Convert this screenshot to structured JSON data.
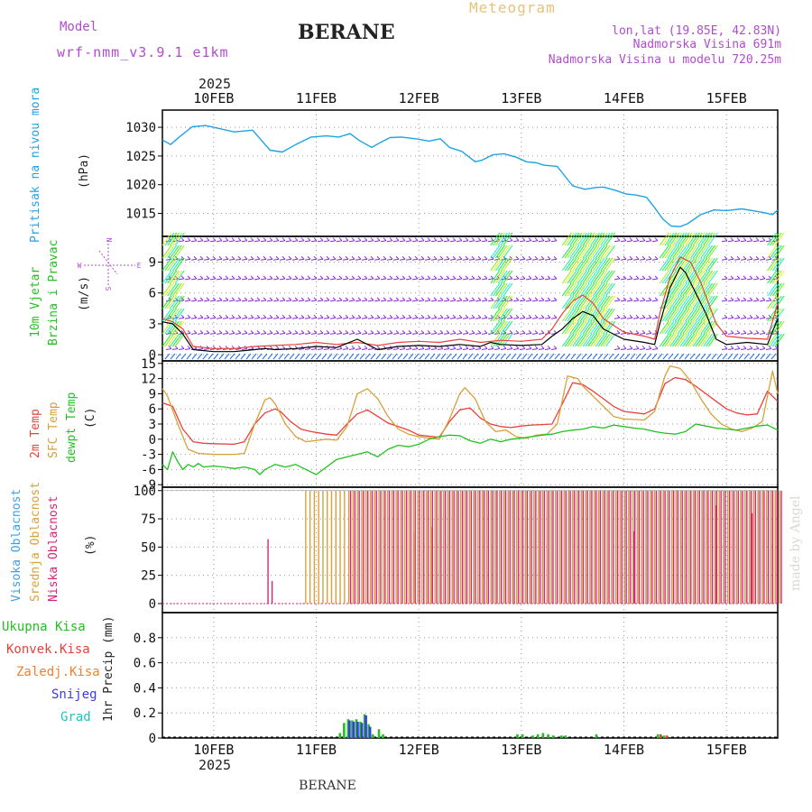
{
  "header": {
    "model_label": "Model",
    "model_name": "wrf-nmm_v3.9.1  e1km",
    "station": "BERANE",
    "product": "Meteogram",
    "location": "lon,lat (19.85E, 42.83N)",
    "elevation": "Nadmorska Visina 691m",
    "model_elevation": "Nadmorska Visina u modelu 720.25m",
    "year_top": "2025",
    "year_bottom": "2025",
    "footer_station": "BERANE",
    "credit": "made by Angel"
  },
  "colors": {
    "pressure": "#1fa2e6",
    "temp2m": "#e8413a",
    "sfc_temp": "#d9a03a",
    "dewpoint": "#22c022",
    "high_cloud": "#3aa0e6",
    "mid_cloud": "#d9a03a",
    "low_cloud": "#d8247a",
    "total_precip": "#22c022",
    "conv_precip": "#e8413a",
    "frozen_precip": "#f08030",
    "snow": "#3a3ae6",
    "graupel": "#22c0c0",
    "wind_purple": "#8a2be2",
    "gust": "#e8413a"
  },
  "chart_data": [
    {
      "type": "line",
      "panel": "pressure",
      "title": "",
      "ylabel_lines": [
        "Pritisak na nivou mora",
        "(hPa)"
      ],
      "x_categories": [
        "10FEB",
        "11FEB",
        "12FEB",
        "13FEB",
        "14FEB",
        "15FEB"
      ],
      "x_range_days": [
        9.5,
        15.5
      ],
      "ylim": [
        1011,
        1033
      ],
      "yticks": [
        "1015",
        "1020",
        "1025",
        "1030"
      ],
      "grid": true,
      "series": [
        {
          "name": "",
          "x": [
            9.5,
            9.58,
            9.67,
            9.79,
            9.92,
            10.0,
            10.2,
            10.38,
            10.55,
            10.67,
            10.8,
            10.95,
            11.1,
            11.22,
            11.33,
            11.42,
            11.54,
            11.62,
            11.72,
            11.83,
            11.97,
            12.1,
            12.21,
            12.3,
            12.42,
            12.55,
            12.62,
            12.72,
            12.83,
            12.95,
            13.05,
            13.15,
            13.22,
            13.35,
            13.42,
            13.5,
            13.62,
            13.72,
            13.8,
            13.92,
            14.02,
            14.12,
            14.22,
            14.3,
            14.38,
            14.46,
            14.55,
            14.62,
            14.75,
            14.88,
            15.0,
            15.15,
            15.25,
            15.35,
            15.45,
            15.5
          ],
          "y": [
            1027.8,
            1027.0,
            1028.4,
            1030.1,
            1030.3,
            1030.0,
            1029.2,
            1029.5,
            1026.0,
            1025.7,
            1027.0,
            1028.3,
            1028.5,
            1028.3,
            1028.9,
            1027.7,
            1026.5,
            1027.3,
            1028.2,
            1028.3,
            1028.0,
            1027.6,
            1028.0,
            1026.5,
            1025.8,
            1024.0,
            1024.3,
            1025.2,
            1025.4,
            1024.8,
            1024.0,
            1023.8,
            1023.4,
            1023.2,
            1021.6,
            1019.8,
            1019.2,
            1019.5,
            1019.6,
            1019.0,
            1018.4,
            1018.2,
            1017.8,
            1016.0,
            1014.0,
            1012.8,
            1012.7,
            1013.2,
            1014.8,
            1015.6,
            1015.5,
            1015.8,
            1015.5,
            1015.2,
            1014.8,
            1015.6
          ]
        }
      ]
    },
    {
      "type": "line",
      "panel": "wind",
      "ylabel_lines": [
        "10m Vjetar",
        "Brzina i Pravac",
        "(m/s)"
      ],
      "compass": {
        "n": "N",
        "s": "S",
        "e": "E",
        "w": "W"
      },
      "ylim": [
        -0.6,
        11.5
      ],
      "yticks": [
        "0",
        "3",
        "6",
        "9"
      ],
      "grid": true,
      "series": [
        {
          "name": "",
          "x": [
            9.5,
            9.6,
            9.7,
            9.8,
            10.0,
            10.2,
            10.4,
            10.5,
            10.6,
            10.8,
            11.0,
            11.2,
            11.4,
            11.6,
            11.8,
            12.0,
            12.2,
            12.4,
            12.6,
            12.7,
            12.8,
            13.0,
            13.2,
            13.3,
            13.4,
            13.5,
            13.6,
            13.7,
            13.8,
            14.0,
            14.2,
            14.3,
            14.35,
            14.45,
            14.55,
            14.6,
            14.7,
            14.8,
            14.9,
            15.0,
            15.2,
            15.4,
            15.5
          ],
          "y": [
            3.2,
            3.0,
            2.0,
            0.5,
            0.3,
            0.3,
            0.5,
            0.6,
            0.5,
            0.6,
            0.8,
            0.7,
            1.5,
            0.5,
            0.8,
            0.9,
            0.8,
            1.0,
            0.8,
            1.2,
            1.0,
            0.9,
            1.0,
            1.8,
            2.5,
            3.5,
            4.2,
            3.8,
            2.5,
            1.5,
            1.2,
            1.0,
            3.0,
            6.5,
            8.5,
            8.0,
            6.0,
            4.0,
            1.5,
            1.0,
            1.2,
            1.0,
            3.5
          ]
        },
        {
          "name": "",
          "x": [
            9.5,
            9.6,
            9.7,
            9.8,
            10.0,
            10.2,
            10.4,
            10.6,
            10.8,
            11.0,
            11.2,
            11.4,
            11.6,
            11.8,
            12.0,
            12.2,
            12.4,
            12.6,
            12.8,
            13.0,
            13.2,
            13.3,
            13.4,
            13.5,
            13.6,
            13.7,
            13.8,
            14.0,
            14.2,
            14.3,
            14.35,
            14.45,
            14.55,
            14.65,
            14.75,
            14.9,
            15.0,
            15.2,
            15.4,
            15.5
          ],
          "y": [
            3.5,
            3.2,
            2.5,
            0.8,
            0.6,
            0.6,
            0.8,
            0.9,
            1.0,
            1.2,
            1.0,
            1.2,
            0.9,
            1.2,
            1.3,
            1.2,
            1.5,
            1.2,
            1.4,
            1.3,
            1.5,
            2.5,
            4.0,
            5.2,
            5.8,
            5.0,
            3.5,
            2.2,
            1.8,
            1.5,
            4.0,
            7.5,
            9.5,
            9.0,
            7.0,
            3.0,
            1.8,
            1.6,
            1.5,
            5.0
          ]
        }
      ]
    },
    {
      "type": "line",
      "panel": "temperature",
      "ylabel_lines": [
        "2m Temp",
        "SFC Temp",
        "dewpt Temp",
        "(C)"
      ],
      "ylim": [
        -9.5,
        15.5
      ],
      "yticks": [
        "-9",
        "-6",
        "-3",
        "0",
        "3",
        "6",
        "9",
        "12",
        "15"
      ],
      "grid": true,
      "series": [
        {
          "name": "2m Temp",
          "x": [
            9.5,
            9.6,
            9.7,
            9.8,
            9.9,
            10.0,
            10.2,
            10.3,
            10.4,
            10.5,
            10.6,
            10.65,
            10.75,
            10.85,
            10.95,
            11.1,
            11.2,
            11.3,
            11.4,
            11.5,
            11.6,
            11.7,
            11.8,
            11.9,
            12.0,
            12.2,
            12.3,
            12.4,
            12.5,
            12.6,
            12.7,
            12.8,
            12.9,
            13.0,
            13.1,
            13.2,
            13.3,
            13.4,
            13.5,
            13.6,
            13.7,
            13.8,
            13.9,
            14.0,
            14.2,
            14.3,
            14.4,
            14.5,
            14.6,
            14.7,
            14.8,
            14.9,
            15.0,
            15.1,
            15.2,
            15.3,
            15.4,
            15.5
          ],
          "y": [
            7.2,
            6.5,
            2.0,
            -0.5,
            -0.8,
            -0.9,
            -1.0,
            -0.5,
            3.0,
            5.2,
            6.0,
            5.5,
            3.5,
            2.0,
            1.5,
            1.0,
            0.8,
            3.0,
            5.0,
            5.8,
            4.5,
            3.2,
            2.5,
            1.8,
            0.8,
            0.4,
            3.5,
            5.8,
            6.2,
            4.2,
            3.0,
            2.5,
            2.3,
            2.6,
            2.8,
            2.9,
            3.0,
            7.0,
            11.2,
            10.8,
            9.5,
            8.0,
            6.5,
            5.5,
            5.0,
            6.0,
            11.0,
            12.2,
            11.8,
            10.5,
            9.0,
            7.5,
            6.0,
            5.2,
            4.8,
            5.0,
            9.5,
            7.5
          ]
        },
        {
          "name": "SFC Temp",
          "x": [
            9.5,
            9.55,
            9.65,
            9.75,
            9.85,
            10.0,
            10.2,
            10.3,
            10.4,
            10.5,
            10.55,
            10.6,
            10.7,
            10.8,
            10.9,
            11.1,
            11.2,
            11.3,
            11.4,
            11.5,
            11.6,
            11.7,
            11.8,
            11.9,
            12.0,
            12.2,
            12.3,
            12.4,
            12.45,
            12.55,
            12.65,
            12.75,
            12.85,
            12.95,
            13.05,
            13.15,
            13.25,
            13.35,
            13.45,
            13.55,
            13.6,
            13.7,
            13.8,
            13.9,
            14.0,
            14.2,
            14.3,
            14.4,
            14.45,
            14.55,
            14.65,
            14.75,
            14.85,
            14.95,
            15.05,
            15.15,
            15.25,
            15.35,
            15.45,
            15.5
          ],
          "y": [
            10.0,
            8.5,
            3.0,
            -2.0,
            -2.8,
            -3.0,
            -3.0,
            -2.8,
            3.0,
            7.8,
            8.2,
            7.0,
            3.0,
            0.5,
            -0.5,
            0.0,
            -0.2,
            2.5,
            9.0,
            10.0,
            8.0,
            4.5,
            2.0,
            1.0,
            0.5,
            0.0,
            4.0,
            9.0,
            10.2,
            8.0,
            3.5,
            1.5,
            1.8,
            0.5,
            0.2,
            0.8,
            1.0,
            3.0,
            12.5,
            12.0,
            10.5,
            8.5,
            6.5,
            4.5,
            4.0,
            3.8,
            5.5,
            12.5,
            14.5,
            14.0,
            11.5,
            8.0,
            5.0,
            3.0,
            2.0,
            1.5,
            2.2,
            3.5,
            13.5,
            9.0
          ]
        },
        {
          "name": "dewpt Temp",
          "x": [
            9.5,
            9.55,
            9.6,
            9.65,
            9.7,
            9.75,
            9.8,
            9.85,
            9.9,
            10.0,
            10.1,
            10.2,
            10.3,
            10.4,
            10.45,
            10.5,
            10.55,
            10.6,
            10.7,
            10.8,
            10.9,
            11.0,
            11.1,
            11.2,
            11.3,
            11.4,
            11.5,
            11.6,
            11.7,
            11.8,
            11.9,
            12.0,
            12.1,
            12.2,
            12.3,
            12.4,
            12.5,
            12.6,
            12.7,
            12.8,
            12.9,
            13.0,
            13.1,
            13.2,
            13.3,
            13.4,
            13.5,
            13.6,
            13.7,
            13.8,
            13.9,
            14.0,
            14.1,
            14.2,
            14.3,
            14.4,
            14.5,
            14.6,
            14.7,
            14.8,
            14.9,
            15.0,
            15.1,
            15.2,
            15.3,
            15.4,
            15.5
          ],
          "y": [
            -5.0,
            -6.0,
            -2.5,
            -4.5,
            -6.0,
            -5.0,
            -5.5,
            -4.8,
            -5.5,
            -5.3,
            -5.5,
            -5.8,
            -5.5,
            -6.0,
            -7.0,
            -6.0,
            -5.5,
            -5.0,
            -5.5,
            -5.0,
            -6.0,
            -7.0,
            -5.5,
            -4.0,
            -3.5,
            -3.0,
            -2.5,
            -3.5,
            -2.0,
            -1.2,
            -1.5,
            -1.0,
            0.0,
            0.5,
            0.8,
            0.7,
            -0.3,
            -0.8,
            0.0,
            -0.5,
            0.0,
            0.2,
            0.5,
            0.8,
            1.0,
            1.5,
            1.8,
            2.0,
            2.5,
            2.2,
            2.8,
            2.5,
            2.2,
            2.0,
            1.5,
            1.2,
            1.0,
            1.5,
            3.0,
            2.6,
            2.2,
            2.0,
            1.8,
            2.2,
            2.6,
            2.8,
            1.8
          ]
        }
      ]
    },
    {
      "type": "bar",
      "panel": "cloud_cover",
      "ylabel_lines": [
        "Visoka Oblacnost",
        "Srednja Oblacnost",
        "Niska Oblacnost",
        "(%)"
      ],
      "ylim": [
        -8,
        103
      ],
      "yticks": [
        "0",
        "25",
        "50",
        "75",
        "100"
      ],
      "grid": true,
      "series": [
        {
          "name": "Visoka Oblacnost",
          "dense_band_days": [
            12.2,
            15.5
          ],
          "level_percent": 100
        },
        {
          "name": "Srednja Oblacnost",
          "dense_band_days": [
            10.88,
            15.5
          ],
          "level_percent": 100,
          "isolated_bars": [
            {
              "x": 11.95,
              "y": 63
            },
            {
              "x": 12.12,
              "y": 68
            }
          ]
        },
        {
          "name": "Niska Oblacnost",
          "dense_band_days": [
            11.3,
            15.5
          ],
          "level_percent": 100,
          "isolated_bars": [
            {
              "x": 10.53,
              "y": 57
            },
            {
              "x": 10.57,
              "y": 20
            },
            {
              "x": 14.1,
              "y": 64
            },
            {
              "x": 14.9,
              "y": 87
            },
            {
              "x": 15.25,
              "y": 80
            }
          ]
        }
      ]
    },
    {
      "type": "bar",
      "panel": "precipitation",
      "legend": [
        "Ukupna Kisa",
        "Konvek.Kisa",
        "Zaledj.Kisa",
        "Snijeg",
        "Grad"
      ],
      "ylabel_lines": [
        "1hr Precip (mm)"
      ],
      "ylim": [
        0,
        1.0
      ],
      "yticks": [
        "0",
        "0.2",
        "0.4",
        "0.6",
        "0.8"
      ],
      "grid": true,
      "series": [
        {
          "name": "Ukupna Kisa",
          "x": [
            11.22,
            11.26,
            11.3,
            11.34,
            11.38,
            11.42,
            11.46,
            11.5,
            11.54,
            11.6,
            11.64,
            12.95,
            13.0,
            13.1,
            13.15,
            13.2,
            13.25,
            13.3,
            13.38,
            13.42,
            13.72,
            14.32,
            14.38
          ],
          "y": [
            0.04,
            0.12,
            0.15,
            0.14,
            0.15,
            0.13,
            0.19,
            0.11,
            0.03,
            0.07,
            0.03,
            0.03,
            0.03,
            0.02,
            0.03,
            0.04,
            0.03,
            0.02,
            0.02,
            0.02,
            0.03,
            0.03,
            0.02
          ]
        },
        {
          "name": "Snijeg",
          "x": [
            11.3,
            11.34,
            11.38,
            11.42,
            11.46,
            11.5
          ],
          "y": [
            0.14,
            0.13,
            0.13,
            0.12,
            0.18,
            0.09
          ]
        },
        {
          "name": "Konvek.Kisa",
          "x": [
            14.33,
            14.39
          ],
          "y": [
            0.03,
            0.02
          ]
        }
      ]
    }
  ]
}
